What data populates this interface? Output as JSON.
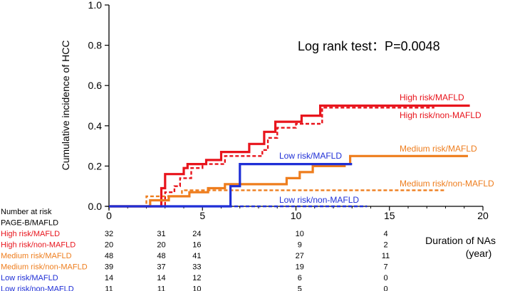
{
  "chart_data": {
    "type": "line",
    "subtype": "kaplan-meier-step",
    "title": "",
    "xlabel": "Duration of NAs",
    "xlabel_unit": "(year)",
    "ylabel": "Cumulative incidence of HCC",
    "xlim": [
      0,
      20
    ],
    "ylim": [
      0,
      1.0
    ],
    "xticks": [
      "0",
      "5",
      "10",
      "15",
      "20"
    ],
    "yticks": [
      "0.0",
      "0.2",
      "0.4",
      "0.6",
      "0.8",
      "1.0"
    ],
    "annotation": "Log rank test：P=0.0048",
    "colors": {
      "red": "#e8141c",
      "orange": "#ee7d1d",
      "blue": "#1f2fd6"
    },
    "series": [
      {
        "name": "High risk/MAFLD",
        "label": "High risk/MAFLD",
        "color": "red",
        "dash": false,
        "points": [
          [
            0,
            0
          ],
          [
            2.8,
            0
          ],
          [
            2.8,
            0.09
          ],
          [
            3.0,
            0.09
          ],
          [
            3.0,
            0.16
          ],
          [
            4.0,
            0.16
          ],
          [
            4.0,
            0.19
          ],
          [
            4.2,
            0.19
          ],
          [
            4.2,
            0.21
          ],
          [
            5.2,
            0.21
          ],
          [
            5.2,
            0.23
          ],
          [
            6.0,
            0.23
          ],
          [
            6.0,
            0.27
          ],
          [
            7.5,
            0.27
          ],
          [
            7.5,
            0.31
          ],
          [
            8.3,
            0.31
          ],
          [
            8.3,
            0.37
          ],
          [
            8.9,
            0.37
          ],
          [
            8.9,
            0.42
          ],
          [
            10.3,
            0.42
          ],
          [
            10.3,
            0.45
          ],
          [
            11.3,
            0.45
          ],
          [
            11.3,
            0.5
          ],
          [
            19.3,
            0.5
          ]
        ]
      },
      {
        "name": "High risk/non-MAFLD",
        "label": "High risk/non-MAFLD",
        "color": "red",
        "dash": true,
        "points": [
          [
            0,
            0
          ],
          [
            3.0,
            0
          ],
          [
            3.0,
            0.07
          ],
          [
            3.5,
            0.07
          ],
          [
            3.5,
            0.1
          ],
          [
            3.8,
            0.1
          ],
          [
            3.8,
            0.14
          ],
          [
            4.4,
            0.14
          ],
          [
            4.4,
            0.19
          ],
          [
            5.0,
            0.19
          ],
          [
            5.0,
            0.21
          ],
          [
            6.2,
            0.21
          ],
          [
            6.2,
            0.25
          ],
          [
            8.2,
            0.25
          ],
          [
            8.2,
            0.28
          ],
          [
            8.5,
            0.28
          ],
          [
            8.5,
            0.34
          ],
          [
            9.0,
            0.34
          ],
          [
            9.0,
            0.39
          ],
          [
            10.0,
            0.39
          ],
          [
            10.0,
            0.41
          ],
          [
            11.4,
            0.41
          ],
          [
            11.4,
            0.49
          ],
          [
            17.4,
            0.49
          ]
        ]
      },
      {
        "name": "Medium risk/MAFLD",
        "label": "Medium risk/MAFLD",
        "color": "orange",
        "dash": false,
        "points": [
          [
            0,
            0
          ],
          [
            2.2,
            0
          ],
          [
            2.2,
            0.03
          ],
          [
            3.2,
            0.03
          ],
          [
            3.2,
            0.05
          ],
          [
            4.3,
            0.05
          ],
          [
            4.3,
            0.07
          ],
          [
            5.3,
            0.07
          ],
          [
            5.3,
            0.09
          ],
          [
            6.2,
            0.09
          ],
          [
            6.2,
            0.11
          ],
          [
            9.5,
            0.11
          ],
          [
            9.5,
            0.14
          ],
          [
            10.2,
            0.14
          ],
          [
            10.2,
            0.17
          ],
          [
            10.9,
            0.17
          ],
          [
            10.9,
            0.2
          ],
          [
            12.6,
            0.2
          ],
          [
            12.6,
            0.21
          ],
          [
            12.9,
            0.21
          ],
          [
            12.9,
            0.25
          ],
          [
            19.2,
            0.25
          ]
        ]
      },
      {
        "name": "Medium risk/non-MAFLD",
        "label": "Medium risk/non-MAFLD",
        "color": "orange",
        "dash": true,
        "points": [
          [
            0,
            0
          ],
          [
            2.0,
            0
          ],
          [
            2.0,
            0.05
          ],
          [
            3.9,
            0.05
          ],
          [
            3.9,
            0.08
          ],
          [
            18.0,
            0.08
          ]
        ]
      },
      {
        "name": "Low risk/MAFLD",
        "label": "Low risk/MAFLD",
        "color": "blue",
        "dash": false,
        "points": [
          [
            0,
            0
          ],
          [
            6.5,
            0
          ],
          [
            6.5,
            0.1
          ],
          [
            7.0,
            0.1
          ],
          [
            7.0,
            0.21
          ],
          [
            13.0,
            0.21
          ]
        ]
      },
      {
        "name": "Low risk/non-MAFLD",
        "label": "Low risk/non-MAFLD",
        "color": "blue",
        "dash": true,
        "points": [
          [
            0,
            0
          ],
          [
            13.8,
            0
          ]
        ]
      }
    ],
    "risk_table": {
      "header": "Number  at risk",
      "group_header": "PAGE-B/MAFLD",
      "times": [
        0,
        2.8,
        4.7,
        10.2,
        14.8
      ],
      "rows": [
        {
          "label": "High risk/MAFLD",
          "color": "red",
          "counts": [
            "32",
            "31",
            "24",
            "10",
            "4"
          ]
        },
        {
          "label": "High risk/non-MAFLD",
          "color": "red",
          "counts": [
            "20",
            "20",
            "16",
            "9",
            "2"
          ]
        },
        {
          "label": "Medium risk/MAFLD",
          "color": "orange",
          "counts": [
            "48",
            "48",
            "41",
            "27",
            "11"
          ]
        },
        {
          "label": "Medium risk/non-MAFLD",
          "color": "orange",
          "counts": [
            "39",
            "37",
            "33",
            "19",
            "7"
          ]
        },
        {
          "label": "Low risk/MAFLD",
          "color": "blue",
          "counts": [
            "14",
            "14",
            "12",
            "6",
            "0"
          ]
        },
        {
          "label": "Low risk/non-MAFLD",
          "color": "blue",
          "counts": [
            "11",
            "11",
            "10",
            "5",
            "0"
          ]
        }
      ]
    }
  }
}
